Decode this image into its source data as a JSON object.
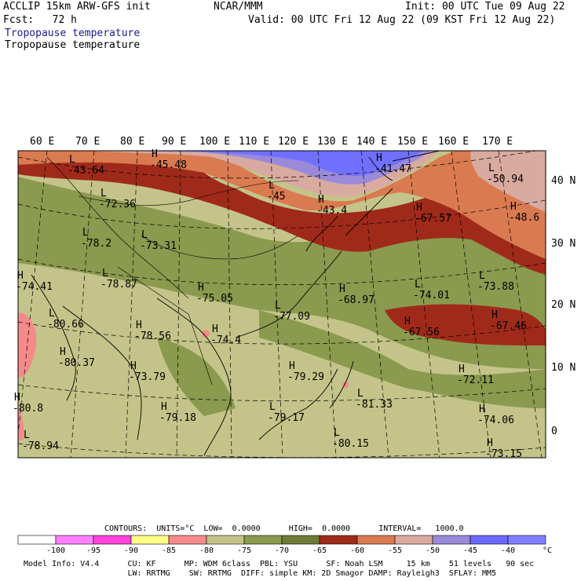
{
  "header": {
    "model_title": "ACCLIP 15km ARW-GFS init",
    "org": "NCAR/MMM",
    "init_time": "Init: 00 UTC Tue 09 Aug 22",
    "forecast_hour": "Fcst:   72 h",
    "valid_time": "Valid: 00 UTC Fri 12 Aug 22 (09 KST Fri 12 Aug 22)",
    "field_title_colored": "Tropopause temperature",
    "field_title": "Tropopause temperature",
    "title_color": "#1a1a8c"
  },
  "map": {
    "longitude_labels": [
      "60 E",
      "70 E",
      "80 E",
      "90 E",
      "100 E",
      "110 E",
      "120 E",
      "130 E",
      "140 E",
      "150 E",
      "160 E",
      "170 E"
    ],
    "latitude_labels": [
      "40 N",
      "30 N",
      "20 N",
      "10 N",
      "0"
    ],
    "highs_lows": [
      {
        "type": "L",
        "value": "-43.64"
      },
      {
        "type": "H",
        "value": "-45.48"
      },
      {
        "type": "H",
        "value": "-41.47"
      },
      {
        "type": "L",
        "value": "-50.94"
      },
      {
        "type": "L",
        "value": "-72.36"
      },
      {
        "type": "L",
        "value": "-45"
      },
      {
        "type": "H",
        "value": "-43.4"
      },
      {
        "type": "H",
        "value": "-67.57"
      },
      {
        "type": "H",
        "value": "-48.6"
      },
      {
        "type": "L",
        "value": "-78.2"
      },
      {
        "type": "L",
        "value": "-73.31"
      },
      {
        "type": "H",
        "value": "-74.41"
      },
      {
        "type": "L",
        "value": "-78.87"
      },
      {
        "type": "H",
        "value": "-75.05"
      },
      {
        "type": "H",
        "value": "-68.97"
      },
      {
        "type": "L",
        "value": "-74.01"
      },
      {
        "type": "L",
        "value": "-73.88"
      },
      {
        "type": "L",
        "value": "-80.66"
      },
      {
        "type": "L",
        "value": "-77.09"
      },
      {
        "type": "H",
        "value": "-67.46"
      },
      {
        "type": "H",
        "value": "-78.56"
      },
      {
        "type": "H",
        "value": "-74.4"
      },
      {
        "type": "H",
        "value": "-67.56"
      },
      {
        "type": "H",
        "value": "-80.37"
      },
      {
        "type": "H",
        "value": "-73.79"
      },
      {
        "type": "H",
        "value": "-79.29"
      },
      {
        "type": "H",
        "value": "-72.11"
      },
      {
        "type": "L",
        "value": "-81.33"
      },
      {
        "type": "H",
        "value": "-80.8"
      },
      {
        "type": "H",
        "value": "-79.18"
      },
      {
        "type": "L",
        "value": "-79.17"
      },
      {
        "type": "H",
        "value": "-74.06"
      },
      {
        "type": "L",
        "value": "-78.94"
      },
      {
        "type": "L",
        "value": "-80.15"
      },
      {
        "type": "H",
        "value": "-73.15"
      }
    ]
  },
  "colorbar": {
    "contours_line": "CONTOURS:  UNITS=°C  LOW=  0.0000      HIGH=  0.0000      INTERVAL=   1000.0",
    "units": "°C",
    "ticks": [
      "-100",
      "-95",
      "-90",
      "-85",
      "-80",
      "-75",
      "-70",
      "-65",
      "-60",
      "-55",
      "-50",
      "-45",
      "-40"
    ],
    "colors": [
      "#ffffff",
      "#ff80ff",
      "#ff44dd",
      "#ffff88",
      "#f58a8a",
      "#c4c48a",
      "#8a9a4e",
      "#6f7a35",
      "#a02a1a",
      "#d97a50",
      "#d9aaa0",
      "#9a8ad9",
      "#6a6aff",
      "#8080ff"
    ]
  },
  "footer": {
    "line1": "Model Info: V4.4      CU: KF      MP: WDM 6class  PBL: YSU      SF: Noah LSM     15 km    51 levels   90 sec",
    "line2": "                      LW: RRTMG    SW: RRTMG  DIFF: simple KM: 2D Smagor DAMP: Rayleigh3  SFLAY: MM5"
  }
}
